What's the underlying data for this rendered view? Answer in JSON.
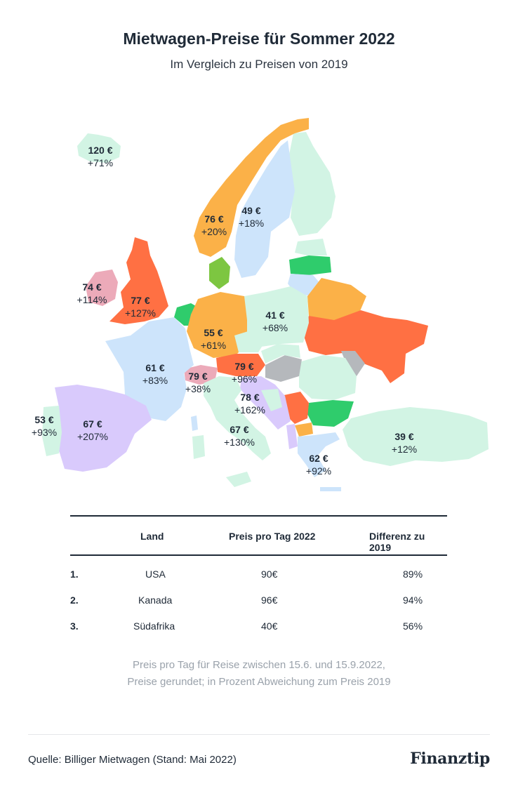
{
  "header": {
    "title": "Mietwagen-Preise für Sommer 2022",
    "subtitle": "Im Vergleich zu Preisen von 2019"
  },
  "colors": {
    "mint": "#d2f4e4",
    "light_blue": "#cde4fb",
    "orange": "#fbb148",
    "red_orange": "#ff7043",
    "pink": "#ecaab9",
    "lavender": "#d9cafc",
    "green": "#2fcc6c",
    "lime": "#7dc641",
    "grey": "#b5b8bc",
    "text_dark": "#1f2a37"
  },
  "map": {
    "countries": [
      {
        "key": "island",
        "price": "120 €",
        "pct": "+71%",
        "color": "mint"
      },
      {
        "key": "norwegen",
        "price": "76 €",
        "pct": "+20%",
        "color": "orange"
      },
      {
        "key": "schweden",
        "price": "49 €",
        "pct": "+18%",
        "color": "light_blue"
      },
      {
        "key": "irland",
        "price": "74 €",
        "pct": "+114%",
        "color": "pink"
      },
      {
        "key": "grossbritannien",
        "price": "77 €",
        "pct": "+127%",
        "color": "red_orange"
      },
      {
        "key": "polen",
        "price": "41 €",
        "pct": "+68%",
        "color": "mint"
      },
      {
        "key": "deutschland",
        "price": "55 €",
        "pct": "+61%",
        "color": "orange"
      },
      {
        "key": "frankreich",
        "price": "61 €",
        "pct": "+83%",
        "color": "light_blue"
      },
      {
        "key": "schweiz",
        "price": "79 €",
        "pct": "+38%",
        "color": "pink"
      },
      {
        "key": "oesterreich",
        "price": "79 €",
        "pct": "+96%",
        "color": "red_orange"
      },
      {
        "key": "kroatien",
        "price": "78 €",
        "pct": "+162%",
        "color": "lavender"
      },
      {
        "key": "portugal",
        "price": "53 €",
        "pct": "+93%",
        "color": "mint"
      },
      {
        "key": "spanien",
        "price": "67 €",
        "pct": "+207%",
        "color": "lavender"
      },
      {
        "key": "italien",
        "price": "67 €",
        "pct": "+130%",
        "color": "mint"
      },
      {
        "key": "griechenland",
        "price": "62 €",
        "pct": "+92%",
        "color": "light_blue"
      },
      {
        "key": "tuerkei",
        "price": "39 €",
        "pct": "+12%",
        "color": "mint"
      }
    ]
  },
  "table": {
    "headers": {
      "land": "Land",
      "preis": "Preis pro Tag 2022",
      "diff": "Differenz zu 2019"
    },
    "rows": [
      {
        "rank": "1.",
        "land": "USA",
        "preis": "90€",
        "diff": "89%"
      },
      {
        "rank": "2.",
        "land": "Kanada",
        "preis": "96€",
        "diff": "94%"
      },
      {
        "rank": "3.",
        "land": "Südafrika",
        "preis": "40€",
        "diff": "56%"
      }
    ]
  },
  "note": {
    "line1": "Preis pro Tag für Reise zwischen 15.6. und 15.9.2022,",
    "line2": "Preise gerundet; in Prozent Abweichung zum Preis 2019"
  },
  "footer": {
    "source": "Quelle: Billiger Mietwagen (Stand: Mai 2022)",
    "logo": "Finanztip"
  }
}
